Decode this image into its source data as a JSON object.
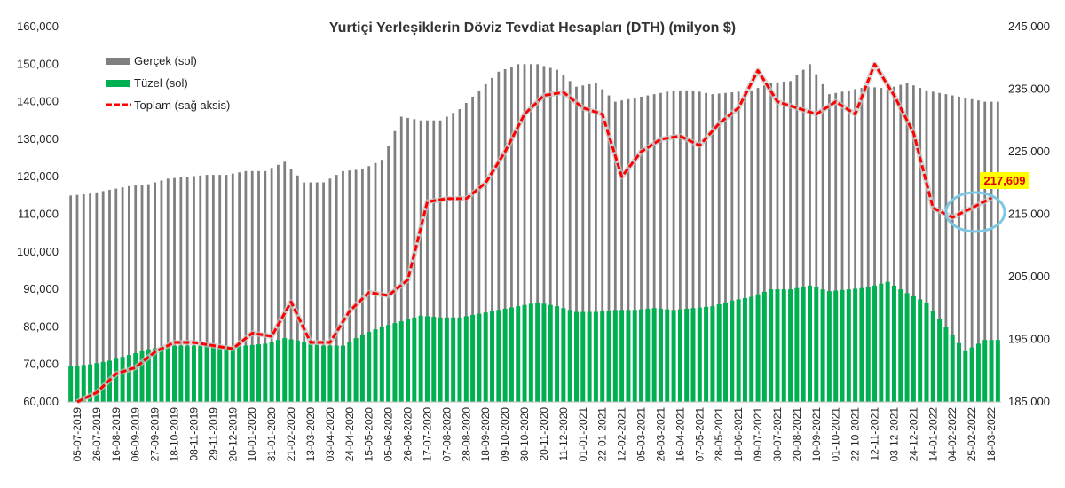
{
  "chart_data": {
    "type": "bar",
    "title": "Yurtiçi Yerleşiklerin Döviz Tevdiat Hesapları (DTH) (milyon $)",
    "left_axis": {
      "ylim": [
        60000,
        160000
      ],
      "ticks": [
        "60,000",
        "70,000",
        "80,000",
        "90,000",
        "100,000",
        "110,000",
        "120,000",
        "130,000",
        "140,000",
        "150,000",
        "160,000"
      ],
      "tick_values": [
        60000,
        70000,
        80000,
        90000,
        100000,
        110000,
        120000,
        130000,
        140000,
        150000,
        160000
      ]
    },
    "right_axis": {
      "ylim": [
        185000,
        245000
      ],
      "ticks": [
        "185,000",
        "195,000",
        "205,000",
        "215,000",
        "225,000",
        "235,000",
        "245,000"
      ],
      "tick_values": [
        185000,
        195000,
        205000,
        215000,
        225000,
        235000,
        245000
      ]
    },
    "grid": false,
    "legend_position": "top-left",
    "colors": {
      "gercek": "#7f7f7f",
      "tuzel": "#00b050",
      "toplam": "#ff0000",
      "callout_bg": "#ffff00",
      "circle": "#7ec8e3"
    },
    "x_labels": [
      "05-07-2019",
      "26-07-2019",
      "16-08-2019",
      "06-09-2019",
      "27-09-2019",
      "18-10-2019",
      "08-11-2019",
      "29-11-2019",
      "20-12-2019",
      "10-01-2020",
      "31-01-2020",
      "21-02-2020",
      "13-03-2020",
      "03-04-2020",
      "24-04-2020",
      "15-05-2020",
      "05-06-2020",
      "26-06-2020",
      "17-07-2020",
      "07-08-2020",
      "28-08-2020",
      "18-09-2020",
      "09-10-2020",
      "30-10-2020",
      "20-11-2020",
      "11-12-2020",
      "01-01-2021",
      "22-01-2021",
      "12-02-2021",
      "05-03-2021",
      "26-03-2021",
      "16-04-2021",
      "07-05-2021",
      "28-05-2021",
      "18-06-2021",
      "09-07-2021",
      "30-07-2021",
      "20-08-2021",
      "10-09-2021",
      "01-10-2021",
      "22-10-2021",
      "12-11-2021",
      "03-12-2021",
      "24-12-2021",
      "14-01-2022",
      "04-02-2022",
      "25-02-2022",
      "18-03-2022"
    ],
    "series": [
      {
        "name": "Gerçek (sol)",
        "axis": "left",
        "type": "bar",
        "values": [
          115000,
          115500,
          116500,
          117500,
          118000,
          119500,
          120000,
          120500,
          120500,
          121500,
          121500,
          124000,
          118500,
          118500,
          121500,
          122000,
          124500,
          136000,
          135000,
          135000,
          138000,
          143000,
          148000,
          150000,
          150000,
          148500,
          144000,
          145000,
          140000,
          141000,
          142000,
          143000,
          143000,
          142000,
          142500,
          143000,
          145000,
          145500,
          150000,
          142000,
          143000,
          144000,
          143500,
          145000,
          143000,
          142000,
          141000,
          140000
        ]
      },
      {
        "name": "Tüzel (sol)",
        "axis": "left",
        "type": "bar",
        "values": [
          69500,
          70000,
          71000,
          72500,
          74000,
          75000,
          75000,
          75000,
          74500,
          75000,
          75500,
          77000,
          76000,
          75000,
          75000,
          78000,
          80000,
          81500,
          83000,
          82500,
          82500,
          83500,
          84500,
          85500,
          86500,
          85500,
          84000,
          84000,
          84500,
          84500,
          85000,
          84500,
          85000,
          85500,
          87000,
          88000,
          90000,
          90000,
          91000,
          89500,
          90000,
          90500,
          92000,
          89000,
          86500,
          80000,
          73500,
          76500
        ]
      },
      {
        "name": "Toplam (sağ aksis)",
        "axis": "right",
        "type": "line",
        "values": [
          185000,
          186500,
          189500,
          190500,
          193000,
          194500,
          194500,
          194000,
          193500,
          196000,
          195500,
          201000,
          194500,
          194500,
          199500,
          202500,
          202000,
          204500,
          217000,
          217500,
          217500,
          220000,
          225000,
          231000,
          234000,
          234500,
          232000,
          231000,
          221000,
          225000,
          227000,
          227500,
          226000,
          229500,
          232000,
          238000,
          233000,
          232000,
          231000,
          233000,
          231000,
          239000,
          234000,
          228000,
          216000,
          214500,
          216000,
          217609
        ]
      }
    ],
    "annotations": [
      {
        "text": "217,609"
      }
    ]
  }
}
